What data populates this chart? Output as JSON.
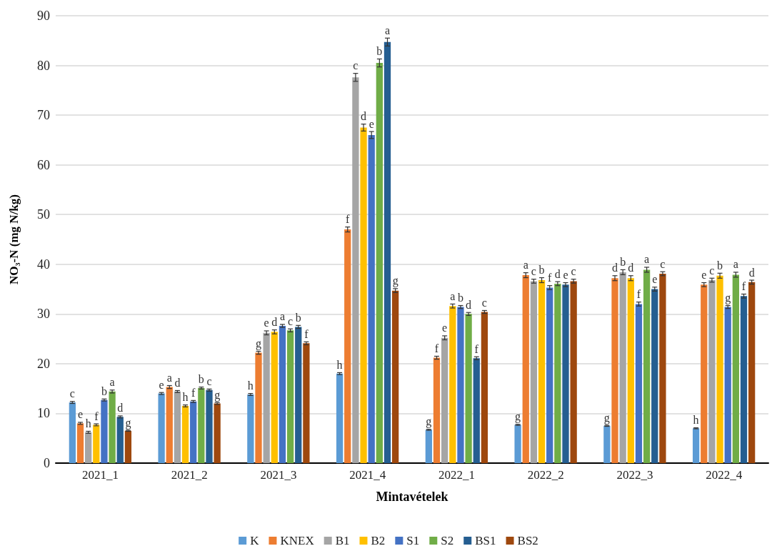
{
  "chart_data": {
    "type": "bar",
    "categories": [
      "2021_1",
      "2021_2",
      "2021_3",
      "2021_4",
      "2022_1",
      "2022_2",
      "2022_3",
      "2022_4"
    ],
    "series": [
      {
        "name": "K",
        "color": "#5b9bd5",
        "values": [
          12.2,
          14.0,
          13.8,
          18.0,
          6.7,
          7.7,
          7.5,
          7.0
        ],
        "errors": [
          0.2,
          0.2,
          0.2,
          0.2,
          0.1,
          0.1,
          0.1,
          0.1
        ],
        "value_labels": [
          "c",
          "e",
          "h",
          "h",
          "g",
          "g",
          "g",
          "h"
        ]
      },
      {
        "name": "KNEX",
        "color": "#ed7d31",
        "values": [
          8.0,
          15.3,
          22.2,
          47.0,
          21.2,
          37.8,
          37.2,
          35.9
        ],
        "errors": [
          0.2,
          0.3,
          0.3,
          0.5,
          0.3,
          0.5,
          0.5,
          0.4
        ],
        "value_labels": [
          "e",
          "a",
          "g",
          "f",
          "f",
          "a",
          "d",
          "e"
        ]
      },
      {
        "name": "B1",
        "color": "#a5a5a5",
        "values": [
          6.2,
          14.4,
          26.2,
          77.6,
          25.2,
          36.6,
          38.4,
          36.8
        ],
        "errors": [
          0.2,
          0.2,
          0.4,
          0.8,
          0.4,
          0.4,
          0.5,
          0.4
        ],
        "value_labels": [
          "h",
          "d",
          "e",
          "c",
          "e",
          "c",
          "b",
          "c"
        ]
      },
      {
        "name": "B2",
        "color": "#ffc000",
        "values": [
          7.7,
          11.5,
          26.4,
          67.5,
          31.6,
          36.8,
          37.2,
          37.7
        ],
        "errors": [
          0.2,
          0.2,
          0.4,
          0.7,
          0.4,
          0.5,
          0.5,
          0.5
        ],
        "value_labels": [
          "f",
          "h",
          "d",
          "d",
          "a",
          "b",
          "d",
          "b"
        ]
      },
      {
        "name": "S1",
        "color": "#4472c4",
        "values": [
          12.7,
          12.4,
          27.6,
          66.0,
          31.4,
          35.3,
          32.0,
          31.4
        ],
        "errors": [
          0.2,
          0.2,
          0.3,
          0.7,
          0.3,
          0.4,
          0.4,
          0.3
        ],
        "value_labels": [
          "b",
          "f",
          "a",
          "e",
          "b",
          "f",
          "f",
          "g"
        ]
      },
      {
        "name": "S2",
        "color": "#70ad47",
        "values": [
          14.4,
          15.1,
          26.7,
          80.5,
          30.0,
          36.1,
          38.9,
          37.9
        ],
        "errors": [
          0.3,
          0.2,
          0.3,
          0.8,
          0.3,
          0.4,
          0.5,
          0.5
        ],
        "value_labels": [
          "a",
          "b",
          "c",
          "b",
          "d",
          "d",
          "a",
          "a"
        ]
      },
      {
        "name": "BS1",
        "color": "#255e91",
        "values": [
          9.3,
          14.7,
          27.4,
          84.7,
          21.1,
          35.9,
          35.0,
          33.6
        ],
        "errors": [
          0.2,
          0.2,
          0.3,
          0.8,
          0.3,
          0.4,
          0.4,
          0.4
        ],
        "value_labels": [
          "d",
          "c",
          "b",
          "a",
          "f",
          "e",
          "e",
          "f"
        ]
      },
      {
        "name": "BS2",
        "color": "#9e480e",
        "values": [
          6.5,
          12.0,
          24.1,
          34.7,
          30.4,
          36.6,
          38.1,
          36.4
        ],
        "errors": [
          0.1,
          0.2,
          0.3,
          0.4,
          0.3,
          0.4,
          0.4,
          0.4
        ],
        "value_labels": [
          "g",
          "g",
          "f",
          "g",
          "c",
          "c",
          "c",
          "d"
        ]
      }
    ],
    "xlabel": "Mintavételek",
    "ylabel": "NO₃-N (mg N/kg)",
    "ylim": [
      0,
      90
    ],
    "yticks": [
      0,
      10,
      20,
      30,
      40,
      50,
      60,
      70,
      80,
      90
    ],
    "grid": "y",
    "legend": "bottom"
  }
}
